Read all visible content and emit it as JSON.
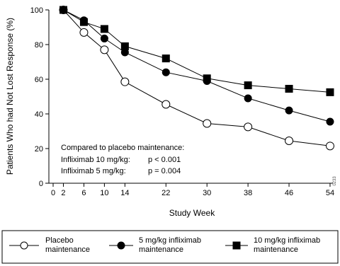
{
  "chart_data": {
    "type": "line",
    "xlabel": "Study Week",
    "ylabel": "Patients Who had Not Lost Response (%)",
    "x_ticks": [
      0,
      2,
      6,
      10,
      14,
      22,
      30,
      38,
      46,
      54
    ],
    "y_ticks": [
      0,
      20,
      40,
      60,
      80,
      100
    ],
    "xlim": [
      0,
      55
    ],
    "ylim": [
      0,
      100
    ],
    "grid": false,
    "legend_position": "bottom",
    "series": [
      {
        "name": "Placebo maintenance",
        "label_lines": [
          "Placebo",
          "maintenance"
        ],
        "marker": "open-circle",
        "color": "#000000",
        "x": [
          2,
          6,
          10,
          14,
          22,
          30,
          38,
          46,
          54
        ],
        "values": [
          100,
          87,
          77,
          58.5,
          45.5,
          34.5,
          32.5,
          24.5,
          21.5
        ]
      },
      {
        "name": "5 mg/kg infliximab maintenance",
        "label_lines": [
          "5 mg/kg infliximab",
          "maintenance"
        ],
        "marker": "filled-circle",
        "color": "#000000",
        "x": [
          2,
          6,
          10,
          14,
          22,
          30,
          38,
          46,
          54
        ],
        "values": [
          100,
          94,
          83.5,
          75.5,
          64,
          59,
          49,
          42,
          35.5
        ]
      },
      {
        "name": "10 mg/kg infliximab maintenance",
        "label_lines": [
          "10 mg/kg infliximab",
          "maintenance"
        ],
        "marker": "filled-square",
        "color": "#000000",
        "x": [
          2,
          6,
          10,
          14,
          22,
          30,
          38,
          46,
          54
        ],
        "values": [
          100,
          93,
          89,
          79,
          72,
          60.5,
          56.5,
          54.5,
          52.5
        ]
      }
    ],
    "annotation": {
      "lines": [
        "Compared to placebo maintenance:",
        "Infliximab 10 mg/kg:",
        "Infliximab 5 mg/kg:"
      ],
      "pvalues": [
        "p < 0.001",
        "p = 0.004"
      ]
    },
    "side_code": "0233"
  }
}
